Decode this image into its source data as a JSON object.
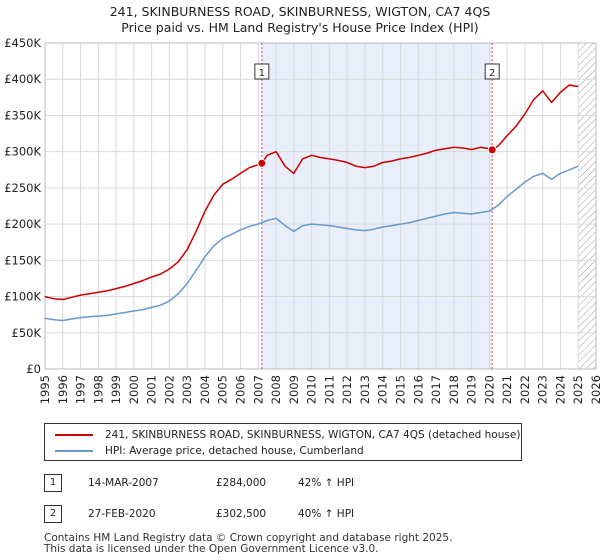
{
  "title_line1": "241, SKINBURNESS ROAD, SKINBURNESS, WIGTON, CA7 4QS",
  "title_line2": "Price paid vs. HM Land Registry's House Price Index (HPI)",
  "colors": {
    "property": "#cc0000",
    "hpi": "#6699cc",
    "shade": "#e8eefa",
    "grid": "#d9d9d9",
    "hatch": "#999999"
  },
  "chart_data": {
    "type": "line",
    "xlim": [
      1995,
      2026
    ],
    "ylim": [
      0,
      450000
    ],
    "y_ticks": [
      0,
      50000,
      100000,
      150000,
      200000,
      250000,
      300000,
      350000,
      400000,
      450000
    ],
    "y_tick_labels": [
      "£0",
      "£50K",
      "£100K",
      "£150K",
      "£200K",
      "£250K",
      "£300K",
      "£350K",
      "£400K",
      "£450K"
    ],
    "x_ticks": [
      1995,
      1996,
      1997,
      1998,
      1999,
      2000,
      2001,
      2002,
      2003,
      2004,
      2005,
      2006,
      2007,
      2008,
      2009,
      2010,
      2011,
      2012,
      2013,
      2014,
      2015,
      2016,
      2017,
      2018,
      2019,
      2020,
      2021,
      2022,
      2023,
      2024,
      2025,
      2026
    ],
    "x_tick_labels": [
      "1995",
      "1996",
      "1997",
      "1998",
      "1999",
      "2000",
      "2001",
      "2002",
      "2003",
      "2004",
      "2005",
      "2006",
      "2007",
      "2008",
      "2009",
      "2010",
      "2011",
      "2012",
      "2013",
      "2014",
      "2015",
      "2016",
      "2017",
      "2018",
      "2019",
      "2020",
      "2021",
      "2022",
      "2023",
      "2024",
      "2025",
      "2026"
    ],
    "shaded_region": [
      2007.2,
      2020.16
    ],
    "hatched_from": 2025.0,
    "series": [
      {
        "name": "241, SKINBURNESS ROAD, SKINBURNESS, WIGTON, CA7 4QS (detached house)",
        "color": "#cc0000",
        "x": [
          1995,
          1995.5,
          1996,
          1996.5,
          1997,
          1997.5,
          1998,
          1998.5,
          1999,
          1999.5,
          2000,
          2000.5,
          2001,
          2001.5,
          2002,
          2002.5,
          2003,
          2003.5,
          2004,
          2004.5,
          2005,
          2005.5,
          2006,
          2006.5,
          2007,
          2007.2,
          2007.5,
          2008,
          2008.5,
          2009,
          2009.5,
          2010,
          2010.5,
          2011,
          2011.5,
          2012,
          2012.5,
          2013,
          2013.5,
          2014,
          2014.5,
          2015,
          2015.5,
          2016,
          2016.5,
          2017,
          2017.5,
          2018,
          2018.5,
          2019,
          2019.5,
          2020,
          2020.16,
          2020.5,
          2021,
          2021.5,
          2022,
          2022.5,
          2023,
          2023.5,
          2024,
          2024.5,
          2025
        ],
        "values": [
          100000,
          97000,
          96000,
          99000,
          102000,
          104000,
          106000,
          108000,
          111000,
          114000,
          118000,
          122000,
          127000,
          131000,
          138000,
          148000,
          165000,
          190000,
          218000,
          240000,
          255000,
          262000,
          270000,
          278000,
          282000,
          284000,
          295000,
          300000,
          280000,
          270000,
          290000,
          295000,
          292000,
          290000,
          288000,
          285000,
          280000,
          278000,
          280000,
          285000,
          287000,
          290000,
          292000,
          295000,
          298000,
          302000,
          304000,
          306000,
          305000,
          303000,
          306000,
          304000,
          302500,
          308000,
          322000,
          335000,
          352000,
          372000,
          384000,
          368000,
          382000,
          392000,
          390000
        ]
      },
      {
        "name": "HPI: Average price, detached house, Cumberland",
        "color": "#6699cc",
        "x": [
          1995,
          1995.5,
          1996,
          1996.5,
          1997,
          1997.5,
          1998,
          1998.5,
          1999,
          1999.5,
          2000,
          2000.5,
          2001,
          2001.5,
          2002,
          2002.5,
          2003,
          2003.5,
          2004,
          2004.5,
          2005,
          2005.5,
          2006,
          2006.5,
          2007,
          2007.5,
          2008,
          2008.5,
          2009,
          2009.5,
          2010,
          2010.5,
          2011,
          2011.5,
          2012,
          2012.5,
          2013,
          2013.5,
          2014,
          2014.5,
          2015,
          2015.5,
          2016,
          2016.5,
          2017,
          2017.5,
          2018,
          2018.5,
          2019,
          2019.5,
          2020,
          2020.5,
          2021,
          2021.5,
          2022,
          2022.5,
          2023,
          2023.5,
          2024,
          2024.5,
          2025
        ],
        "values": [
          70000,
          68000,
          67000,
          69000,
          71000,
          72000,
          73000,
          74000,
          76000,
          78000,
          80000,
          82000,
          85000,
          88000,
          94000,
          104000,
          118000,
          136000,
          155000,
          170000,
          180000,
          186000,
          192000,
          197000,
          200000,
          205000,
          208000,
          198000,
          190000,
          198000,
          200000,
          199000,
          198000,
          196000,
          194000,
          192000,
          191000,
          193000,
          196000,
          198000,
          200000,
          202000,
          205000,
          208000,
          211000,
          214000,
          216000,
          215000,
          214000,
          216000,
          218000,
          226000,
          238000,
          248000,
          258000,
          266000,
          270000,
          262000,
          270000,
          275000,
          280000
        ]
      }
    ],
    "transactions": [
      {
        "label": "1",
        "x": 2007.2,
        "y": 284000,
        "date": "14-MAR-2007",
        "price": "£284,000",
        "delta": "42% ↑ HPI"
      },
      {
        "label": "2",
        "x": 2020.16,
        "y": 302500,
        "date": "27-FEB-2020",
        "price": "£302,500",
        "delta": "40% ↑ HPI"
      }
    ]
  },
  "footer_line1": "Contains HM Land Registry data © Crown copyright and database right 2025.",
  "footer_line2": "This data is licensed under the Open Government Licence v3.0."
}
